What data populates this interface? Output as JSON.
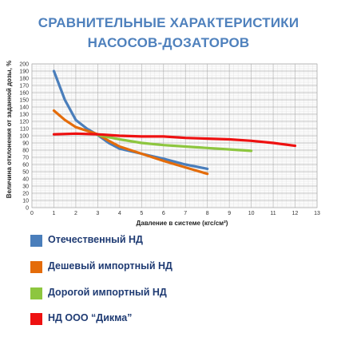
{
  "slide": {
    "title_line_1": "СРАВНИТЕЛЬНЫЕ ХАРАКТЕРИСТИКИ",
    "title_line_2": "НАСОСОВ-ДОЗАТОРОВ"
  },
  "chart_data": {
    "type": "line",
    "title": "",
    "xlabel": "Давление в системе (кгс/см²)",
    "ylabel": "Величина отклонения от заданной дозы, %",
    "xlim": [
      0,
      13
    ],
    "ylim": [
      0,
      200
    ],
    "x_ticks": [
      0,
      1,
      2,
      3,
      4,
      5,
      6,
      7,
      8,
      9,
      10,
      11,
      12,
      13
    ],
    "y_ticks": [
      0,
      10,
      20,
      30,
      40,
      50,
      60,
      70,
      80,
      90,
      100,
      110,
      120,
      130,
      140,
      150,
      160,
      170,
      180,
      190,
      200
    ],
    "grid": true,
    "legend_position": "bottom",
    "series": [
      {
        "name": "Отечественный НД",
        "color": "#4a7ebb",
        "x": [
          1,
          1.5,
          2,
          2.5,
          3,
          3.5,
          4,
          5,
          6,
          7,
          8
        ],
        "y": [
          190,
          150,
          122,
          110,
          101,
          90,
          82,
          75,
          68,
          60,
          54
        ]
      },
      {
        "name": "Дешевый импортный НД",
        "color": "#e46c0a",
        "x": [
          1,
          1.5,
          2,
          2.5,
          3,
          3.5,
          4,
          5,
          6,
          7,
          8
        ],
        "y": [
          135,
          122,
          112,
          107,
          102,
          93,
          85,
          75,
          65,
          56,
          47
        ]
      },
      {
        "name": "Дорогой импортный НД",
        "color": "#8dc63f",
        "x": [
          3,
          4,
          5,
          6,
          7,
          8,
          9,
          10
        ],
        "y": [
          101,
          95,
          90,
          87,
          85,
          83,
          81,
          79
        ]
      },
      {
        "name": "НД ООО “Дикма”",
        "color": "#ee1111",
        "x": [
          1,
          2,
          3,
          4,
          5,
          6,
          7,
          8,
          9,
          10,
          11,
          12
        ],
        "y": [
          102,
          103,
          102,
          100,
          99,
          99,
          97,
          96,
          95,
          93,
          90,
          86
        ]
      }
    ]
  }
}
